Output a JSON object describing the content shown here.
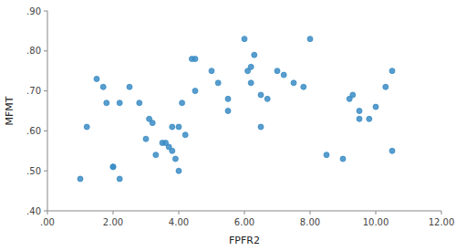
{
  "chart_data": {
    "type": "scatter",
    "x": [
      1.0,
      1.2,
      1.5,
      1.7,
      1.8,
      2.0,
      2.0,
      2.2,
      2.2,
      2.5,
      2.8,
      3.0,
      3.1,
      3.2,
      3.3,
      3.5,
      3.6,
      3.7,
      3.8,
      3.8,
      3.9,
      4.0,
      4.0,
      4.1,
      4.2,
      4.4,
      4.5,
      4.5,
      5.0,
      5.2,
      5.5,
      5.5,
      6.0,
      6.1,
      6.2,
      6.2,
      6.3,
      6.5,
      6.5,
      6.7,
      7.0,
      7.2,
      7.5,
      7.8,
      8.0,
      8.5,
      9.0,
      9.2,
      9.3,
      9.5,
      9.5,
      9.8,
      10.0,
      10.3,
      10.5,
      10.5
    ],
    "y": [
      0.48,
      0.61,
      0.73,
      0.71,
      0.67,
      0.51,
      0.51,
      0.48,
      0.67,
      0.71,
      0.67,
      0.58,
      0.63,
      0.62,
      0.54,
      0.57,
      0.57,
      0.56,
      0.55,
      0.61,
      0.53,
      0.5,
      0.61,
      0.67,
      0.59,
      0.78,
      0.78,
      0.7,
      0.75,
      0.72,
      0.65,
      0.68,
      0.83,
      0.75,
      0.76,
      0.72,
      0.79,
      0.69,
      0.61,
      0.68,
      0.75,
      0.74,
      0.72,
      0.71,
      0.83,
      0.54,
      0.53,
      0.68,
      0.69,
      0.65,
      0.63,
      0.63,
      0.66,
      0.71,
      0.55,
      0.75
    ],
    "xlabel": "FPFR2",
    "ylabel": "MFMT",
    "xlim": [
      0.0,
      12.0
    ],
    "ylim": [
      0.4,
      0.9
    ],
    "xticks": [
      {
        "value": 0.0,
        "label": ".00"
      },
      {
        "value": 2.0,
        "label": "2.00"
      },
      {
        "value": 4.0,
        "label": "4.00"
      },
      {
        "value": 6.0,
        "label": "6.00"
      },
      {
        "value": 8.0,
        "label": "8.00"
      },
      {
        "value": 10.0,
        "label": "10.00"
      },
      {
        "value": 12.0,
        "label": "12.00"
      }
    ],
    "yticks": [
      {
        "value": 0.4,
        "label": ".40"
      },
      {
        "value": 0.5,
        "label": ".50"
      },
      {
        "value": 0.6,
        "label": ".60"
      },
      {
        "value": 0.7,
        "label": ".70"
      },
      {
        "value": 0.8,
        "label": ".80"
      },
      {
        "value": 0.9,
        "label": ".90"
      }
    ],
    "color": "#3a8cc4",
    "grid": false
  }
}
